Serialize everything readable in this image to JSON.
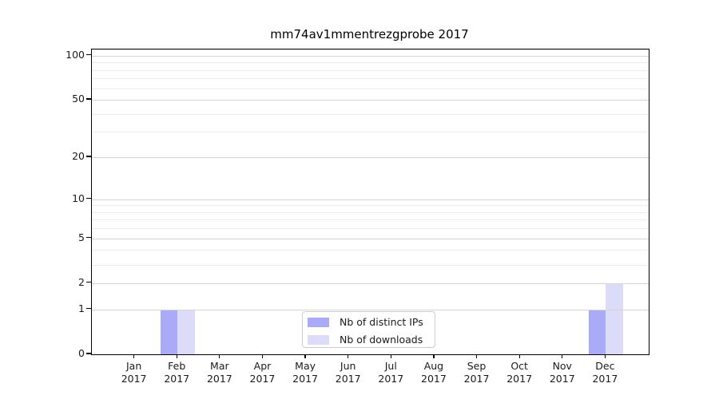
{
  "chart_data": {
    "type": "bar",
    "title": "mm74av1mmentrezgprobe 2017",
    "categories": [
      "Jan",
      "Feb",
      "Mar",
      "Apr",
      "May",
      "Jun",
      "Jul",
      "Aug",
      "Sep",
      "Oct",
      "Nov",
      "Dec"
    ],
    "x_tick_second_line": "2017",
    "series": [
      {
        "name": "Nb of distinct IPs",
        "color": "#aaaaf8",
        "values": [
          0,
          1,
          0,
          0,
          0,
          0,
          0,
          0,
          0,
          0,
          0,
          1
        ]
      },
      {
        "name": "Nb of downloads",
        "color": "#dcdcf9",
        "values": [
          0,
          1,
          0,
          0,
          0,
          0,
          0,
          0,
          0,
          0,
          0,
          2
        ]
      }
    ],
    "y_scale": "log1p",
    "ylim": [
      0,
      110
    ],
    "y_major_ticks": [
      0,
      1,
      2,
      5,
      10,
      20,
      50,
      100
    ],
    "y_minor_ticks": [
      3,
      4,
      6,
      7,
      8,
      9,
      30,
      40,
      60,
      70,
      80,
      90,
      110
    ],
    "grid": true,
    "legend_position": "bottom-center",
    "colors": {
      "major_grid": "#d4d4d4",
      "minor_grid": "#ececec",
      "spine": "#000000",
      "text": "#1a1a1a"
    }
  }
}
